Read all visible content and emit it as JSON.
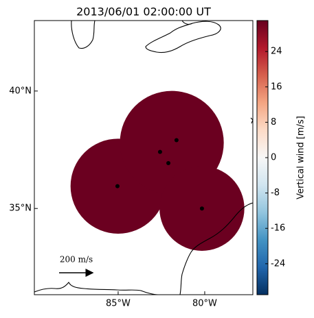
{
  "chart_data": {
    "type": "map",
    "title": "2013/06/01 02:00:00 UT",
    "xlim": [
      -89.84,
      -77.22
    ],
    "ylim": [
      31.33,
      43.0
    ],
    "xticks": [
      {
        "value": -85,
        "label": "85°W"
      },
      {
        "value": -80,
        "label": "80°W"
      }
    ],
    "yticks": [
      {
        "value": 35,
        "label": "35°N"
      },
      {
        "value": 40,
        "label": "40°N"
      }
    ],
    "field": {
      "value": 31,
      "color": "#6b0020",
      "areas": [
        {
          "lon": -85.0,
          "lat": 35.95,
          "r": 2.75
        },
        {
          "lon": -81.9,
          "lat": 37.8,
          "r": 3.0
        },
        {
          "lon": -80.16,
          "lat": 35.0,
          "r": 2.45
        }
      ]
    },
    "sites": {
      "color": "#000000",
      "lon": [
        -85.04,
        -82.58,
        -82.1,
        -81.63,
        -80.16
      ],
      "lat": [
        35.95,
        37.41,
        36.93,
        37.91,
        35.0
      ]
    },
    "arrow_label": "200 m/s",
    "colorbar": {
      "label": "Vertical wind [m/s]",
      "clim": [
        -31,
        31
      ],
      "ticks": [
        -24,
        -16,
        -8,
        0,
        8,
        16,
        24
      ],
      "colors": [
        "#053061",
        "#2166ac",
        "#4393c3",
        "#92c5de",
        "#d1e5f0",
        "#f7f7f7",
        "#fddbc7",
        "#f4a582",
        "#d6604d",
        "#b2182b",
        "#67001f"
      ]
    }
  }
}
